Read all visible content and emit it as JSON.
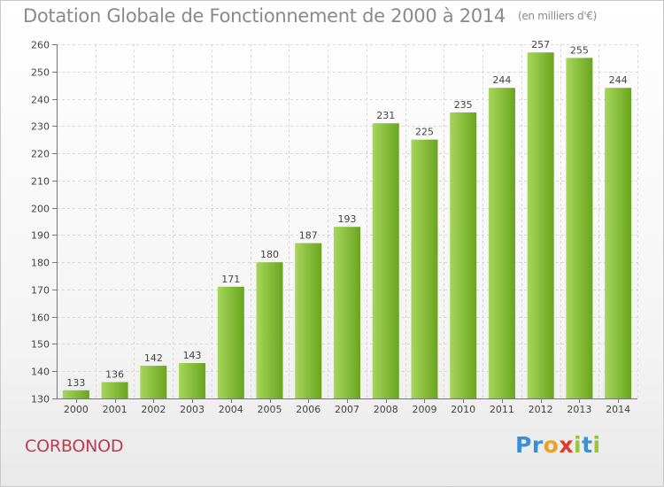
{
  "title": "Dotation Globale de Fonctionnement de 2000 à 2014",
  "subtitle": "(en milliers d'€)",
  "commune": "CORBONOD",
  "logo": {
    "letters": [
      "P",
      "r",
      "o",
      "x",
      "i",
      "t",
      "i"
    ],
    "colors": [
      "#3b8fd6",
      "#3b8fd6",
      "#f0a020",
      "#e03a2e",
      "#9bc43a",
      "#3b8fd6",
      "#9bc43a"
    ]
  },
  "colors": {
    "bar_light": "#a6d65a",
    "bar_dark": "#6aa51f",
    "grid": "#d9d9d9",
    "axis_text": "#444444"
  },
  "chart_data": {
    "type": "bar",
    "categories": [
      "2000",
      "2001",
      "2002",
      "2003",
      "2004",
      "2005",
      "2006",
      "2007",
      "2008",
      "2009",
      "2010",
      "2011",
      "2012",
      "2013",
      "2014"
    ],
    "values": [
      133,
      136,
      142,
      143,
      171,
      180,
      187,
      193,
      231,
      225,
      235,
      244,
      257,
      255,
      244
    ],
    "ylim": [
      130,
      260
    ],
    "yticks": [
      130,
      140,
      150,
      160,
      170,
      180,
      190,
      200,
      210,
      220,
      230,
      240,
      250,
      260
    ],
    "grid": true,
    "legend": "none"
  }
}
